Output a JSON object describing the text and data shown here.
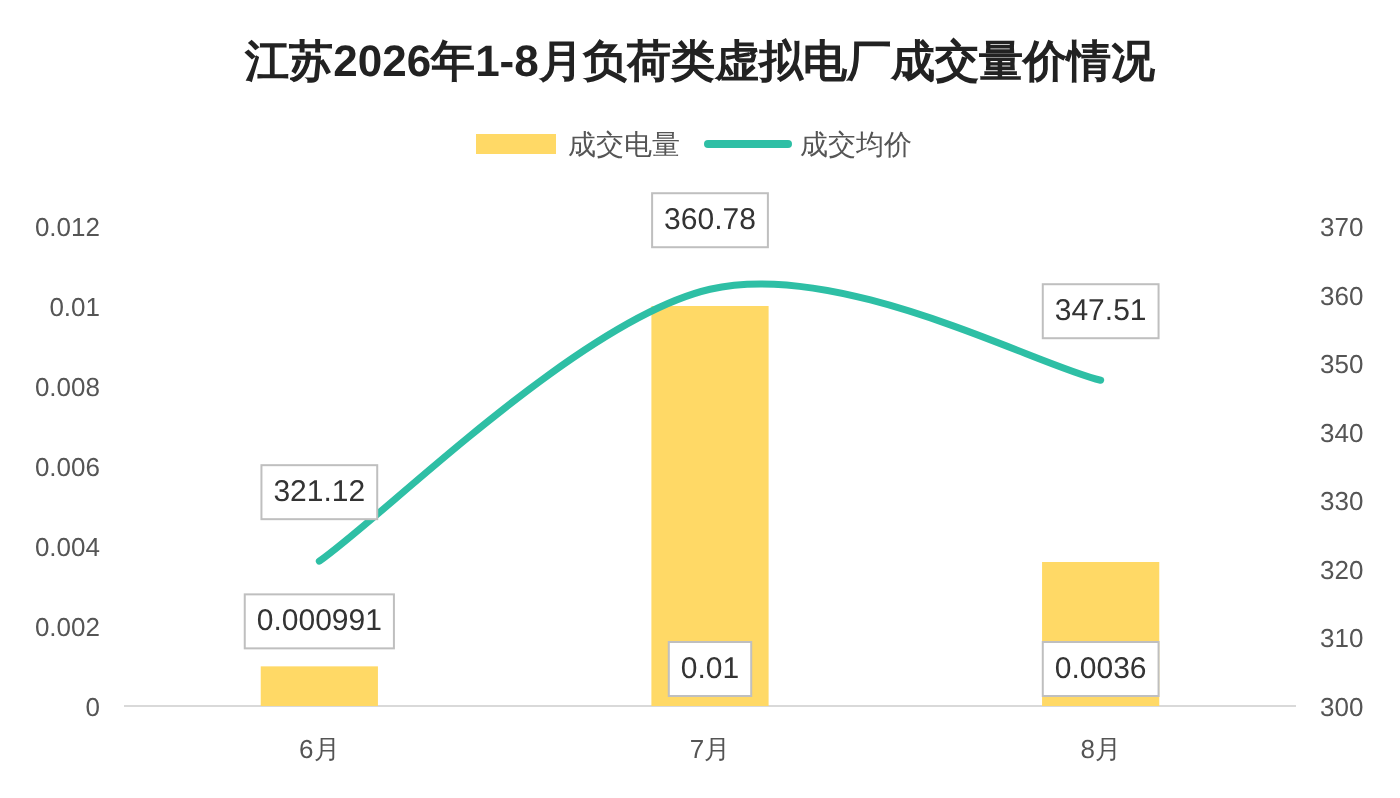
{
  "chart_data": {
    "type": "bar",
    "title": "江苏2026年1-8月负荷类虚拟电厂成交量价情况",
    "categories": [
      "6月",
      "7月",
      "8月"
    ],
    "series": [
      {
        "name": "成交电量",
        "color": "#ffd966",
        "values": [
          0.000991,
          0.01,
          0.0036
        ]
      },
      {
        "name": "成交均价",
        "type": "line",
        "axis": "y2",
        "color": "#2ebfa5",
        "values": [
          321.12,
          360.78,
          347.51
        ]
      }
    ],
    "ylim": [
      0,
      0.012
    ],
    "yticks": [
      0,
      0.002,
      0.004,
      0.006,
      0.008,
      0.01,
      0.012
    ],
    "y2lim": [
      300,
      370
    ],
    "y2ticks": [
      300,
      310,
      320,
      330,
      340,
      350,
      360,
      370
    ],
    "legend": "top",
    "data_labels": true
  }
}
